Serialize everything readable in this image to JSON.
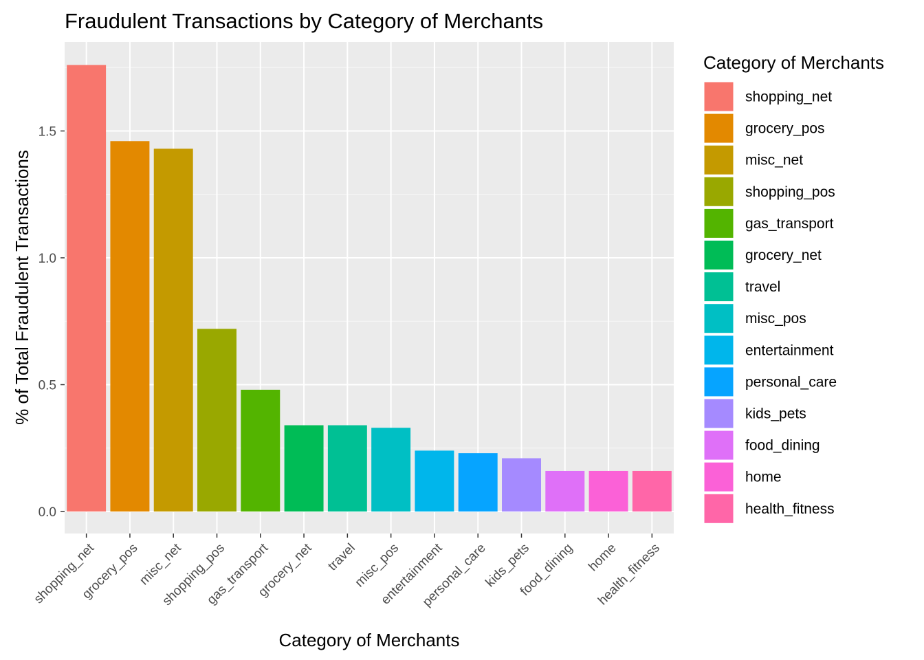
{
  "chart_data": {
    "type": "bar",
    "title": "Fraudulent Transactions by Category of Merchants",
    "xlabel": "Category of Merchants",
    "ylabel": "% of Total Fraudulent Transactions",
    "ylim": [
      0,
      1.76
    ],
    "yticks": [
      "0.0",
      "0.5",
      "1.0",
      "1.5"
    ],
    "grid": true,
    "legend": {
      "title": "Category of Merchants",
      "position": "right"
    },
    "categories": [
      "shopping_net",
      "grocery_pos",
      "misc_net",
      "shopping_pos",
      "gas_transport",
      "grocery_net",
      "travel",
      "misc_pos",
      "entertainment",
      "personal_care",
      "kids_pets",
      "food_dining",
      "home",
      "health_fitness"
    ],
    "values": [
      1.76,
      1.46,
      1.43,
      0.72,
      0.48,
      0.34,
      0.34,
      0.33,
      0.24,
      0.23,
      0.21,
      0.16,
      0.16,
      0.16
    ],
    "colors": [
      "#F8766D",
      "#E38900",
      "#C49A00",
      "#99A800",
      "#53B400",
      "#00BC56",
      "#00C094",
      "#00BFC4",
      "#00B6EB",
      "#06A4FF",
      "#A58AFF",
      "#DF70F8",
      "#FB61D7",
      "#FF66A8"
    ]
  }
}
